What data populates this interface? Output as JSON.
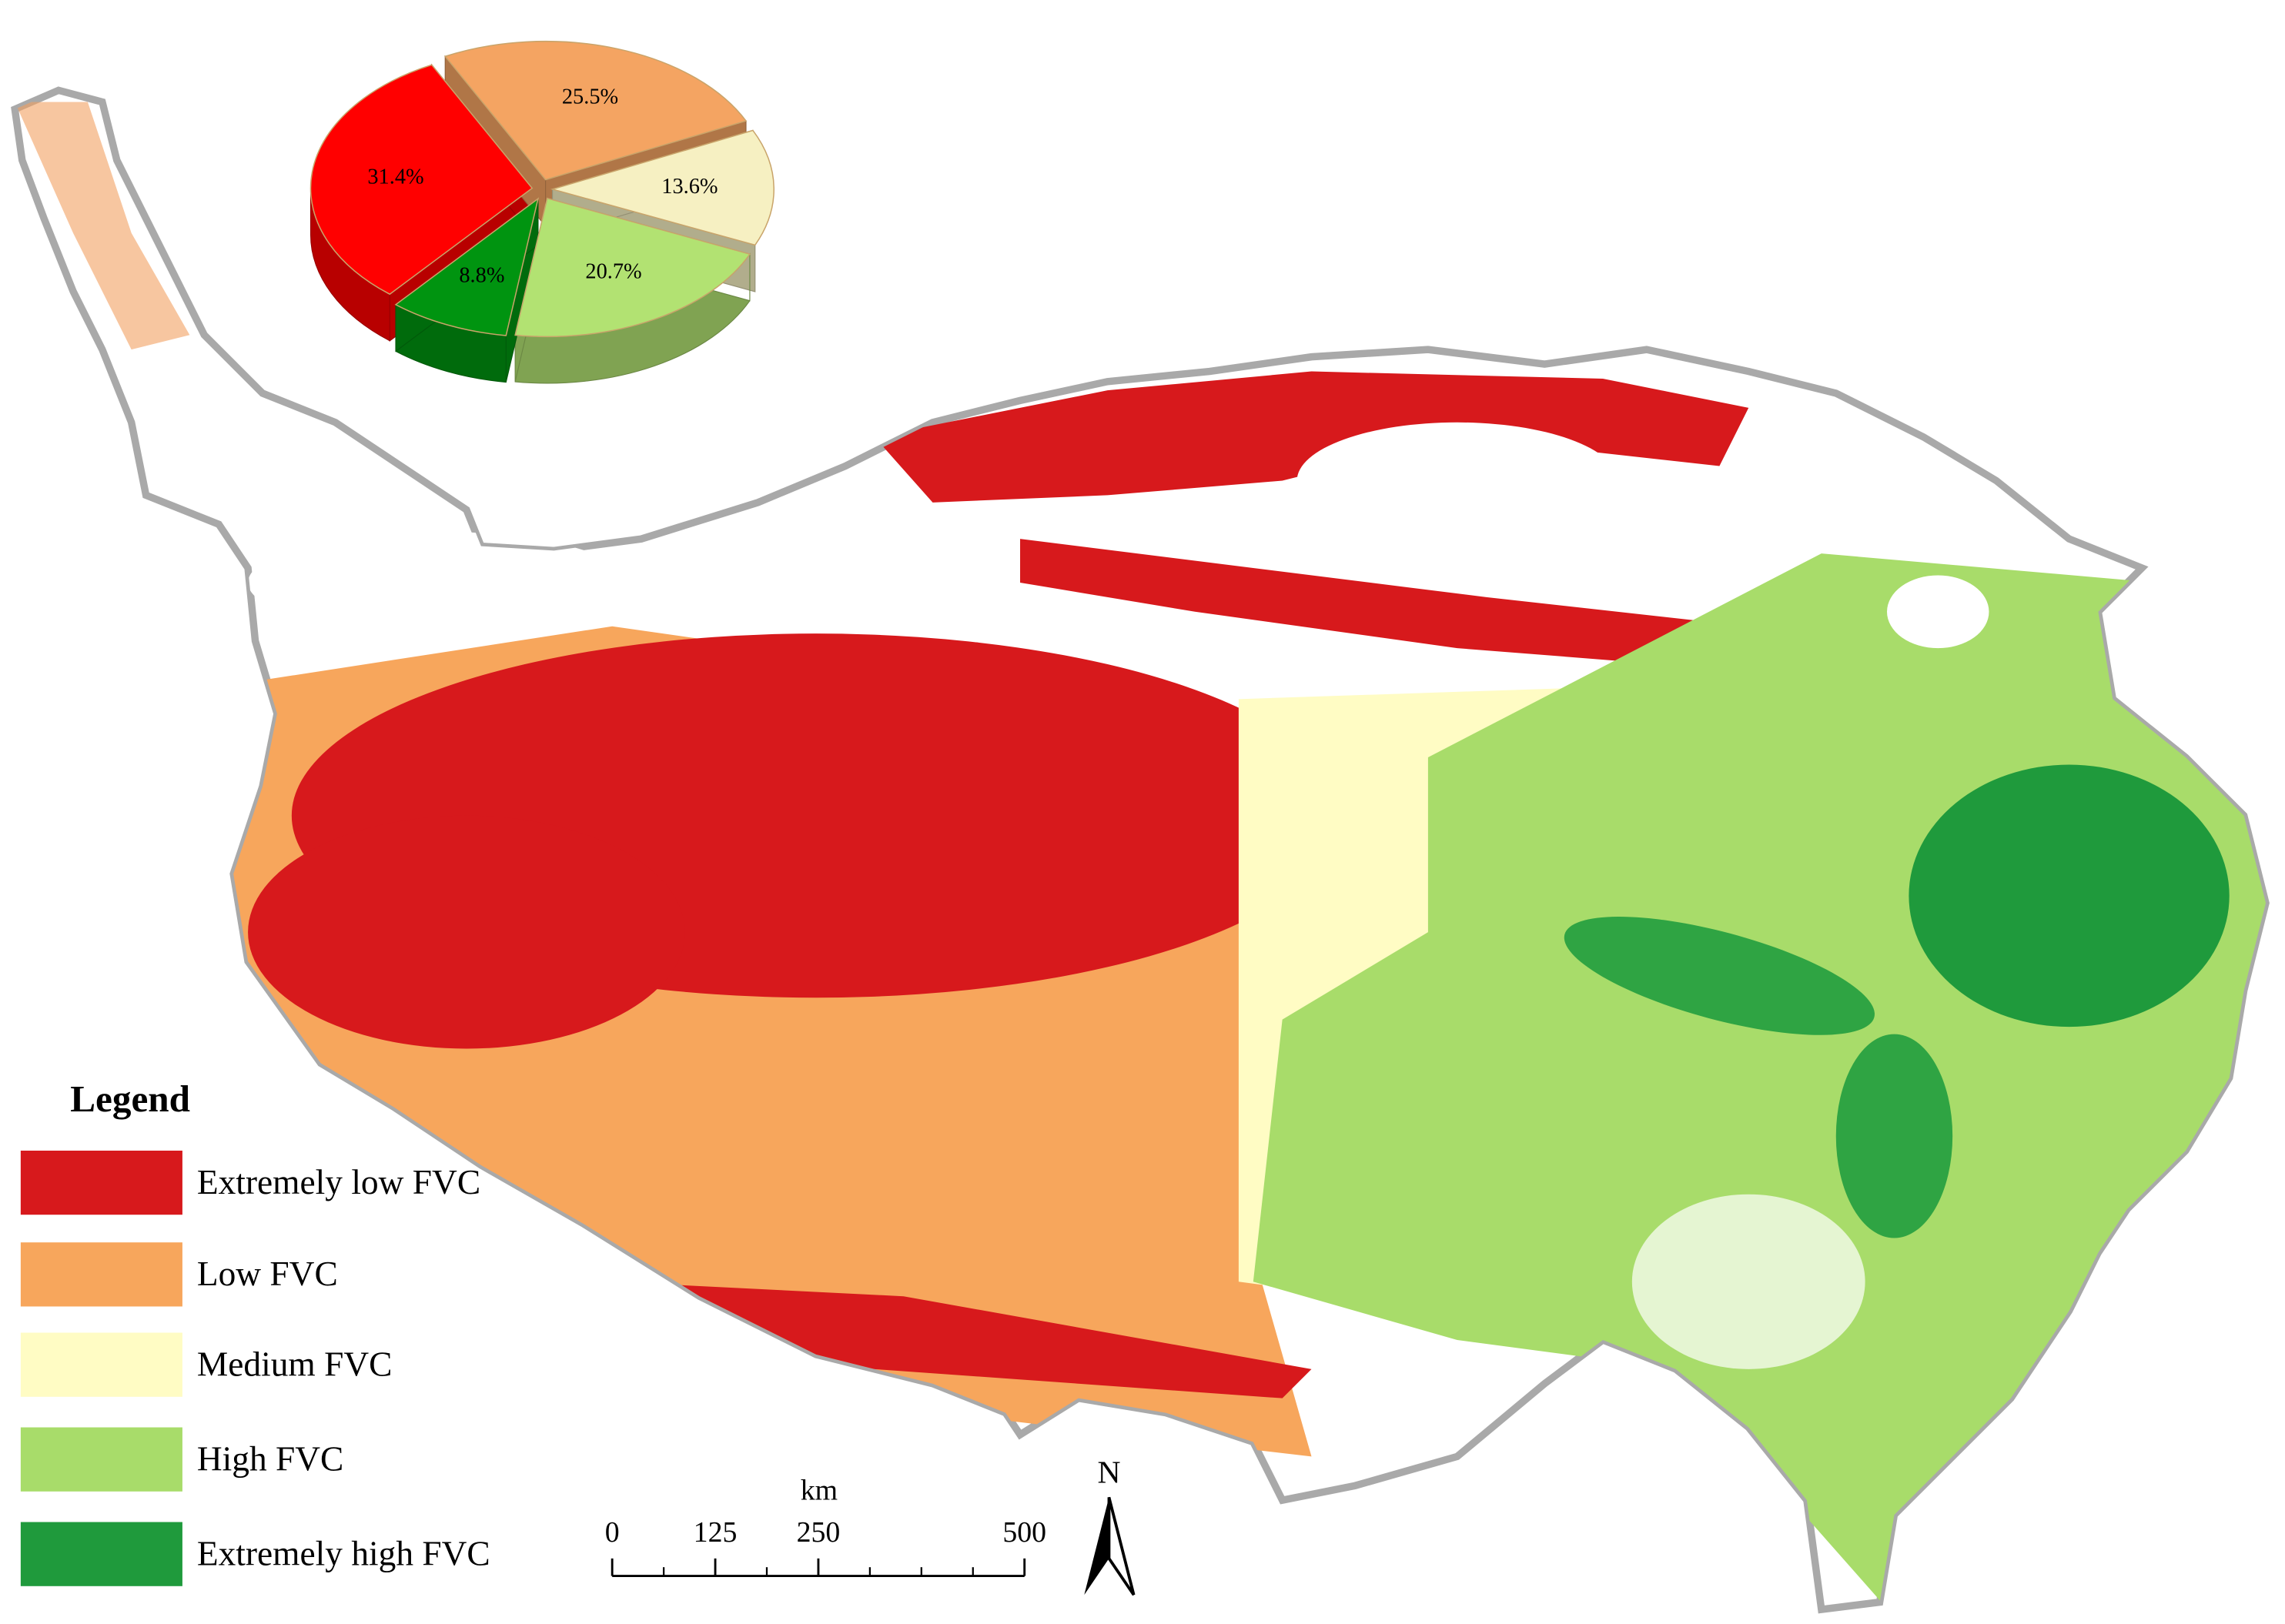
{
  "chart_data": {
    "type": "pie",
    "categories": [
      "Extremely low FVC",
      "Low FVC",
      "Medium FVC",
      "High FVC",
      "Extremely high FVC"
    ],
    "values": [
      31.4,
      25.5,
      13.6,
      20.7,
      8.8
    ],
    "value_labels": [
      "31.4%",
      "25.5%",
      "13.6%",
      "20.7%",
      "8.8%"
    ],
    "colors": [
      "#ff0000",
      "#f4a462",
      "#f6f0c2",
      "#b2e272",
      "#009410"
    ]
  },
  "legend": {
    "title": "Legend",
    "colors": [
      "#d7191c",
      "#f7a65c",
      "#fffcc4",
      "#a8dc6a",
      "#1f9a3c"
    ]
  },
  "scale_bar": {
    "unit": "km",
    "xlim": [
      0,
      500
    ],
    "ticks": [
      0,
      125,
      250,
      500
    ]
  },
  "north_arrow": {
    "label": "N"
  }
}
